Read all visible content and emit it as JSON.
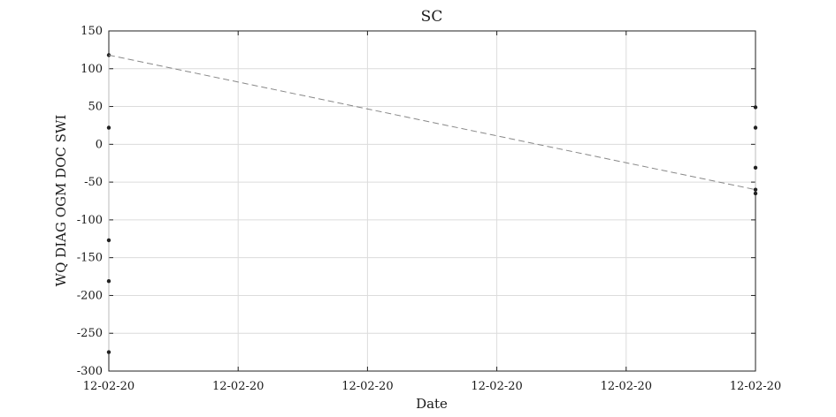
{
  "chart_data": {
    "type": "line",
    "title": "SC",
    "xlabel": "Date",
    "ylabel": "WQ DIAG OGM DOC SWI",
    "ylim": [
      -300,
      150
    ],
    "yticks": [
      150,
      100,
      50,
      0,
      -50,
      -100,
      -150,
      -200,
      -250,
      -300
    ],
    "xticks": [
      "12-02-20",
      "12-02-20",
      "12-02-20",
      "12-02-20",
      "12-02-20",
      "12-02-20"
    ],
    "xlim": [
      0,
      5
    ],
    "grid": true,
    "series": [
      {
        "style": "points",
        "color": "#222222",
        "points": [
          {
            "x": 0,
            "y": 118
          },
          {
            "x": 0,
            "y": 22
          },
          {
            "x": 0,
            "y": -127
          },
          {
            "x": 0,
            "y": -181
          },
          {
            "x": 0,
            "y": -275
          },
          {
            "x": 5,
            "y": 49
          },
          {
            "x": 5,
            "y": 22
          },
          {
            "x": 5,
            "y": -31
          },
          {
            "x": 5,
            "y": -60
          },
          {
            "x": 5,
            "y": -65
          }
        ]
      },
      {
        "style": "dashed",
        "color": "#888888",
        "points": [
          {
            "x": 0,
            "y": 118
          },
          {
            "x": 5,
            "y": -60
          }
        ]
      }
    ]
  }
}
